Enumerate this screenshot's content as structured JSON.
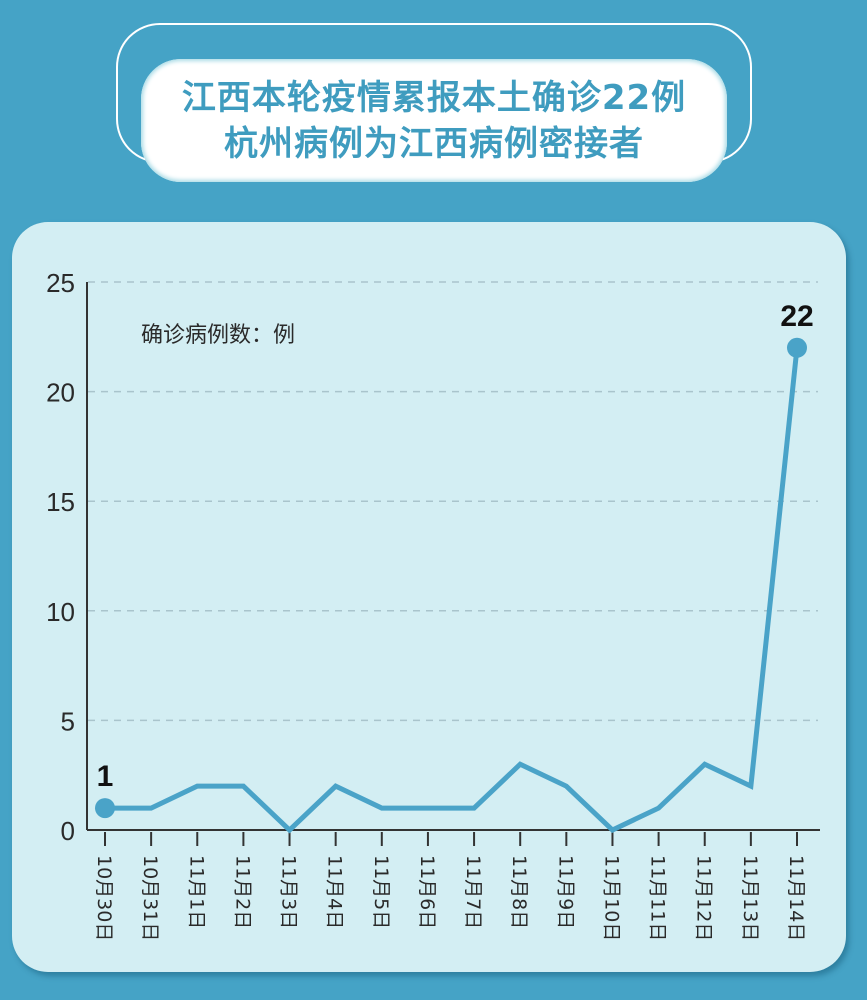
{
  "title": {
    "line1": "江西本轮疫情累报本土确诊22例",
    "line2": "杭州病例为江西病例密接者"
  },
  "colors": {
    "background": "#45a3c6",
    "card": "#d3eef3",
    "line": "#4aa3c8",
    "title_text": "#3f9cbf"
  },
  "chart_data": {
    "type": "line",
    "title": "江西本轮疫情累报本土确诊22例 杭州病例为江西病例密接者",
    "ylabel": "确诊病例数：例",
    "xlabel": "",
    "ylim": [
      0,
      25
    ],
    "yticks": [
      0,
      5,
      10,
      15,
      20,
      25
    ],
    "grid": "horizontal dashed",
    "categories": [
      "10月30日",
      "10月31日",
      "11月1日",
      "11月2日",
      "11月3日",
      "11月4日",
      "11月5日",
      "11月6日",
      "11月7日",
      "11月8日",
      "11月9日",
      "11月10日",
      "11月11日",
      "11月12日",
      "11月13日",
      "11月14日"
    ],
    "series": [
      {
        "name": "确诊病例数",
        "values": [
          1,
          1,
          2,
          2,
          0,
          2,
          1,
          1,
          1,
          3,
          2,
          0,
          1,
          3,
          2,
          22
        ]
      }
    ],
    "annotations": [
      {
        "index": 0,
        "text": "1"
      },
      {
        "index": 15,
        "text": "22"
      }
    ]
  }
}
